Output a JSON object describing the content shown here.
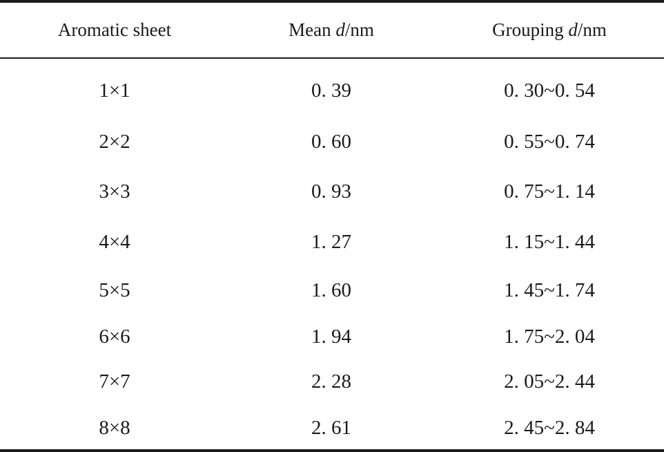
{
  "table": {
    "headers": {
      "col1": "Aromatic sheet",
      "col2_prefix": "Mean ",
      "col2_var": "d",
      "col2_unit": "/nm",
      "col3_prefix": "Grouping ",
      "col3_var": "d",
      "col3_unit": "/nm"
    },
    "rows": [
      {
        "sheet": "1×1",
        "mean": "0. 39",
        "grouping": "0. 30~0. 54"
      },
      {
        "sheet": "2×2",
        "mean": "0. 60",
        "grouping": "0. 55~0. 74"
      },
      {
        "sheet": "3×3",
        "mean": "0. 93",
        "grouping": "0. 75~1. 14"
      },
      {
        "sheet": "4×4",
        "mean": "1. 27",
        "grouping": "1. 15~1. 44"
      },
      {
        "sheet": "5×5",
        "mean": "1. 60",
        "grouping": "1. 45~1. 74"
      },
      {
        "sheet": "6×6",
        "mean": "1. 94",
        "grouping": "1. 75~2. 04"
      },
      {
        "sheet": "7×7",
        "mean": "2. 28",
        "grouping": "2. 05~2. 44"
      },
      {
        "sheet": "8×8",
        "mean": "2. 61",
        "grouping": "2. 45~2. 84"
      }
    ]
  }
}
